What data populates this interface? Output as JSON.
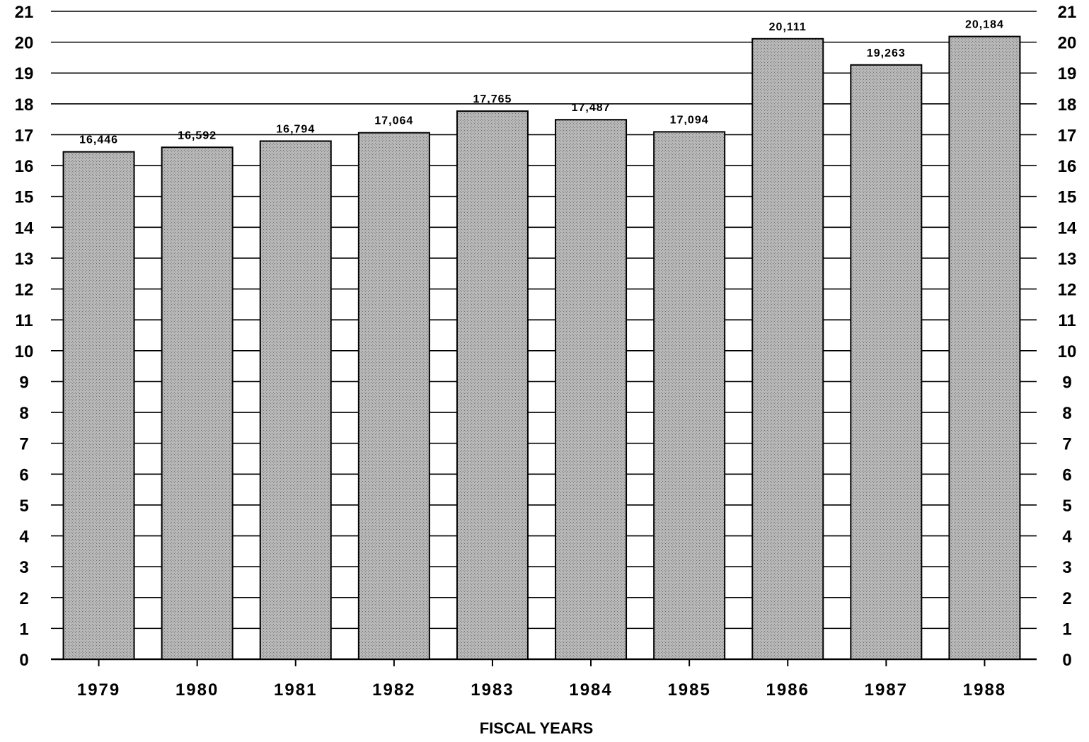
{
  "chart_data": {
    "type": "bar",
    "xlabel": "FISCAL YEARS",
    "ylabel": "",
    "ylim": [
      0,
      21
    ],
    "yticks": [
      0,
      1,
      2,
      3,
      4,
      5,
      6,
      7,
      8,
      9,
      10,
      11,
      12,
      13,
      14,
      15,
      16,
      17,
      18,
      19,
      20,
      21
    ],
    "grid": true,
    "categories": [
      "1979",
      "1980",
      "1981",
      "1982",
      "1983",
      "1984",
      "1985",
      "1986",
      "1987",
      "1988"
    ],
    "values": [
      16.446,
      16.592,
      16.794,
      17.064,
      17.765,
      17.487,
      17.094,
      20.111,
      19.263,
      20.184
    ],
    "data_labels": [
      "16,446",
      "16,592",
      "16,794",
      "17,064",
      "17,765",
      "17,487",
      "17,094",
      "20,111",
      "19,263",
      "20,184"
    ]
  },
  "colors": {
    "bar_fill": "#b3b3b3",
    "bar_stroke": "#000000",
    "grid": "#000000",
    "text": "#000000"
  }
}
